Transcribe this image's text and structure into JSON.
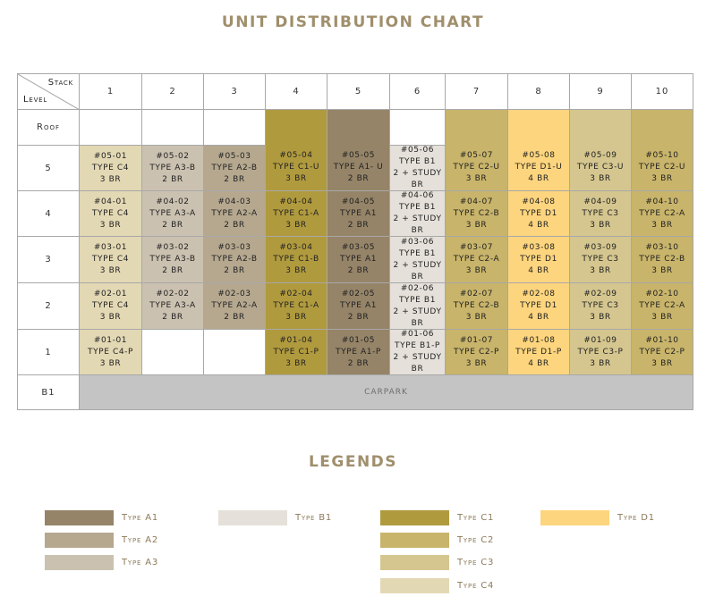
{
  "header": {
    "title": "UNIT DISTRIBUTION CHART",
    "stack_label": "Stack",
    "level_label": "Level"
  },
  "stacks": [
    "1",
    "2",
    "3",
    "4",
    "5",
    "6",
    "7",
    "8",
    "9",
    "10"
  ],
  "roof": {
    "level": "Roof"
  },
  "rows": [
    {
      "level": "5",
      "cells": [
        {
          "code": "#05-01",
          "type": "TYPE C4",
          "rooms": "3 BR",
          "color": "#e3d8b4"
        },
        {
          "code": "#05-02",
          "type": "TYPE A3-B",
          "rooms": "2 BR",
          "color": "#cbc1b0"
        },
        {
          "code": "#05-03",
          "type": "TYPE A2-B",
          "rooms": "2 BR",
          "color": "#b5a88f"
        },
        {
          "code": "#05-04",
          "type": "TYPE C1-U",
          "rooms": "3 BR",
          "color": "#b09a3e"
        },
        {
          "code": "#05-05",
          "type": "TYPE A1- U",
          "rooms": "2 BR",
          "color": "#958468"
        },
        {
          "code": "#05-06",
          "type": "TYPE B1",
          "rooms": "2 + STUDY BR",
          "color": "#e5e1da"
        },
        {
          "code": "#05-07",
          "type": "TYPE C2-U",
          "rooms": "3 BR",
          "color": "#c8b46a"
        },
        {
          "code": "#05-08",
          "type": "TYPE D1-U",
          "rooms": "4 BR",
          "color": "#fdd57e"
        },
        {
          "code": "#05-09",
          "type": "TYPE C3-U",
          "rooms": "3 BR",
          "color": "#d5c68f"
        },
        {
          "code": "#05-10",
          "type": "TYPE C2-U",
          "rooms": "3 BR",
          "color": "#c8b46a"
        }
      ]
    },
    {
      "level": "4",
      "cells": [
        {
          "code": "#04-01",
          "type": "TYPE C4",
          "rooms": "3 BR",
          "color": "#e3d8b4"
        },
        {
          "code": "#04-02",
          "type": "TYPE A3-A",
          "rooms": "2 BR",
          "color": "#cbc1b0"
        },
        {
          "code": "#04-03",
          "type": "TYPE A2-A",
          "rooms": "2 BR",
          "color": "#b5a88f"
        },
        {
          "code": "#04-04",
          "type": "TYPE C1-A",
          "rooms": "3 BR",
          "color": "#b09a3e"
        },
        {
          "code": "#04-05",
          "type": "TYPE A1",
          "rooms": "2 BR",
          "color": "#958468"
        },
        {
          "code": "#04-06",
          "type": "TYPE B1",
          "rooms": "2 + STUDY BR",
          "color": "#e5e1da"
        },
        {
          "code": "#04-07",
          "type": "TYPE C2-B",
          "rooms": "3 BR",
          "color": "#c8b46a"
        },
        {
          "code": "#04-08",
          "type": "TYPE D1",
          "rooms": "4 BR",
          "color": "#fdd57e"
        },
        {
          "code": "#04-09",
          "type": "TYPE C3",
          "rooms": "3 BR",
          "color": "#d5c68f"
        },
        {
          "code": "#04-10",
          "type": "TYPE C2-A",
          "rooms": "3 BR",
          "color": "#c8b46a"
        }
      ]
    },
    {
      "level": "3",
      "cells": [
        {
          "code": "#03-01",
          "type": "TYPE C4",
          "rooms": "3 BR",
          "color": "#e3d8b4"
        },
        {
          "code": "#03-02",
          "type": "TYPE A3-B",
          "rooms": "2 BR",
          "color": "#cbc1b0"
        },
        {
          "code": "#03-03",
          "type": "TYPE A2-B",
          "rooms": "2 BR",
          "color": "#b5a88f"
        },
        {
          "code": "#03-04",
          "type": "TYPE C1-B",
          "rooms": "3 BR",
          "color": "#b09a3e"
        },
        {
          "code": "#03-05",
          "type": "TYPE A1",
          "rooms": "2 BR",
          "color": "#958468"
        },
        {
          "code": "#03-06",
          "type": "TYPE B1",
          "rooms": "2 + STUDY BR",
          "color": "#e5e1da"
        },
        {
          "code": "#03-07",
          "type": "TYPE C2-A",
          "rooms": "3 BR",
          "color": "#c8b46a"
        },
        {
          "code": "#03-08",
          "type": "TYPE D1",
          "rooms": "4 BR",
          "color": "#fdd57e"
        },
        {
          "code": "#03-09",
          "type": "TYPE C3",
          "rooms": "3 BR",
          "color": "#d5c68f"
        },
        {
          "code": "#03-10",
          "type": "TYPE C2-B",
          "rooms": "3 BR",
          "color": "#c8b46a"
        }
      ]
    },
    {
      "level": "2",
      "cells": [
        {
          "code": "#02-01",
          "type": "TYPE C4",
          "rooms": "3 BR",
          "color": "#e3d8b4"
        },
        {
          "code": "#02-02",
          "type": "TYPE A3-A",
          "rooms": "2 BR",
          "color": "#cbc1b0"
        },
        {
          "code": "#02-03",
          "type": "TYPE A2-A",
          "rooms": "2 BR",
          "color": "#b5a88f"
        },
        {
          "code": "#02-04",
          "type": "TYPE C1-A",
          "rooms": "3 BR",
          "color": "#b09a3e"
        },
        {
          "code": "#02-05",
          "type": "TYPE A1",
          "rooms": "2 BR",
          "color": "#958468"
        },
        {
          "code": "#02-06",
          "type": "TYPE B1",
          "rooms": "2 + STUDY BR",
          "color": "#e5e1da"
        },
        {
          "code": "#02-07",
          "type": "TYPE C2-B",
          "rooms": "3 BR",
          "color": "#c8b46a"
        },
        {
          "code": "#02-08",
          "type": "TYPE D1",
          "rooms": "4 BR",
          "color": "#fdd57e"
        },
        {
          "code": "#02-09",
          "type": "TYPE C3",
          "rooms": "3 BR",
          "color": "#d5c68f"
        },
        {
          "code": "#02-10",
          "type": "TYPE C2-A",
          "rooms": "3 BR",
          "color": "#c8b46a"
        }
      ]
    },
    {
      "level": "1",
      "cells": [
        {
          "code": "#01-01",
          "type": "TYPE C4-P",
          "rooms": "3 BR",
          "color": "#e3d8b4"
        },
        null,
        null,
        {
          "code": "#01-04",
          "type": "TYPE C1-P",
          "rooms": "3 BR",
          "color": "#b09a3e"
        },
        {
          "code": "#01-05",
          "type": "TYPE A1-P",
          "rooms": "2 BR",
          "color": "#958468"
        },
        {
          "code": "#01-06",
          "type": "TYPE B1-P",
          "rooms": "2 + STUDY BR",
          "color": "#e5e1da"
        },
        {
          "code": "#01-07",
          "type": "TYPE C2-P",
          "rooms": "3 BR",
          "color": "#c8b46a"
        },
        {
          "code": "#01-08",
          "type": "TYPE D1-P",
          "rooms": "4 BR",
          "color": "#fdd57e"
        },
        {
          "code": "#01-09",
          "type": "TYPE C3-P",
          "rooms": "3 BR",
          "color": "#d5c68f"
        },
        {
          "code": "#01-10",
          "type": "TYPE C2-P",
          "rooms": "3 BR",
          "color": "#c8b46a"
        }
      ]
    }
  ],
  "basement": {
    "level": "B1",
    "label": "CARPARK",
    "color": "#c4c4c4"
  },
  "legend": {
    "title": "LEGENDS",
    "groups": [
      [
        {
          "label": "Type A1",
          "color": "#958468"
        },
        {
          "label": "Type A2",
          "color": "#b5a88f"
        },
        {
          "label": "Type A3",
          "color": "#cbc1b0"
        }
      ],
      [
        {
          "label": "Type B1",
          "color": "#e5e1da"
        }
      ],
      [
        {
          "label": "Type C1",
          "color": "#b09a3e"
        },
        {
          "label": "Type C2",
          "color": "#c8b46a"
        },
        {
          "label": "Type C3",
          "color": "#d5c68f"
        },
        {
          "label": "Type C4",
          "color": "#e3d8b4"
        }
      ],
      [
        {
          "label": "Type D1",
          "color": "#fdd57e"
        }
      ]
    ]
  }
}
